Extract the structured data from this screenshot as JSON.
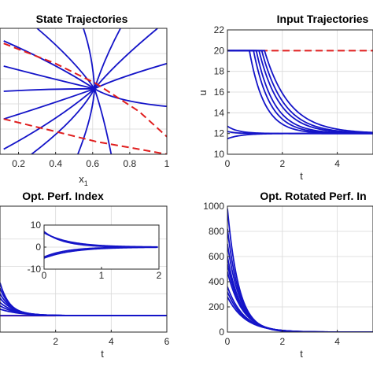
{
  "colors": {
    "trajectory": "#1414c8",
    "reference": "#e01e1e",
    "axis": "#262626",
    "grid": "#d9d9d9"
  },
  "chart_data": [
    {
      "id": "state",
      "type": "line",
      "title": "State Trajectories",
      "xlabel": "x",
      "xlabel_sub": "1",
      "ylabel": "",
      "xlim": [
        0.1,
        1.0
      ],
      "ylim": [
        0,
        1
      ],
      "xticks": [
        0.2,
        0.4,
        0.6,
        0.8,
        1.0
      ],
      "xtick_labels": [
        "0.2",
        "0.4",
        "0.6",
        "0.8",
        "1"
      ],
      "yticks": [],
      "grid": true,
      "convergence_point": [
        0.61,
        0.52
      ],
      "series": [
        {
          "kind": "trajectory",
          "x": [
            0.12,
            0.4,
            0.61
          ],
          "y": [
            0.9,
            0.72,
            0.52
          ]
        },
        {
          "kind": "trajectory",
          "x": [
            0.12,
            0.38,
            0.61
          ],
          "y": [
            0.7,
            0.6,
            0.52
          ]
        },
        {
          "kind": "trajectory",
          "x": [
            0.12,
            0.36,
            0.61
          ],
          "y": [
            0.5,
            0.52,
            0.52
          ]
        },
        {
          "kind": "trajectory",
          "x": [
            0.12,
            0.38,
            0.61
          ],
          "y": [
            0.28,
            0.4,
            0.52
          ]
        },
        {
          "kind": "trajectory",
          "x": [
            0.12,
            0.42,
            0.61
          ],
          "y": [
            0.04,
            0.28,
            0.52
          ]
        },
        {
          "kind": "trajectory",
          "x": [
            0.27,
            0.52,
            0.61
          ],
          "y": [
            0.0,
            0.28,
            0.52
          ]
        },
        {
          "kind": "trajectory",
          "x": [
            0.52,
            0.6,
            0.61
          ],
          "y": [
            0.0,
            0.3,
            0.52
          ]
        },
        {
          "kind": "trajectory",
          "x": [
            0.7,
            0.66,
            0.61
          ],
          "y": [
            0.0,
            0.3,
            0.52
          ]
        },
        {
          "kind": "trajectory",
          "x": [
            1.0,
            0.72,
            0.61
          ],
          "y": [
            0.38,
            0.42,
            0.52
          ]
        },
        {
          "kind": "trajectory",
          "x": [
            1.0,
            0.72,
            0.61
          ],
          "y": [
            0.72,
            0.6,
            0.52
          ]
        },
        {
          "kind": "trajectory",
          "x": [
            0.95,
            0.72,
            0.61
          ],
          "y": [
            1.0,
            0.72,
            0.52
          ]
        },
        {
          "kind": "trajectory",
          "x": [
            0.75,
            0.66,
            0.61
          ],
          "y": [
            1.0,
            0.75,
            0.52
          ]
        },
        {
          "kind": "trajectory",
          "x": [
            0.55,
            0.6,
            0.61
          ],
          "y": [
            1.0,
            0.78,
            0.52
          ]
        },
        {
          "kind": "trajectory",
          "x": [
            0.3,
            0.5,
            0.61
          ],
          "y": [
            1.0,
            0.75,
            0.52
          ]
        },
        {
          "kind": "reference",
          "x": [
            0.12,
            0.4,
            0.62,
            0.85,
            1.0
          ],
          "y": [
            0.88,
            0.72,
            0.56,
            0.34,
            0.14
          ]
        },
        {
          "kind": "reference",
          "x": [
            0.12,
            0.4,
            0.62,
            0.85,
            1.0
          ],
          "y": [
            0.28,
            0.18,
            0.1,
            0.04,
            0.0
          ]
        }
      ]
    },
    {
      "id": "input",
      "type": "line",
      "title": "Input Trajectories",
      "xlabel": "t",
      "ylabel": "u",
      "xlim": [
        0,
        5.3
      ],
      "ylim": [
        10,
        22
      ],
      "xticks": [
        0,
        2,
        4
      ],
      "xtick_labels": [
        "0",
        "2",
        "4"
      ],
      "yticks": [
        10,
        12,
        14,
        16,
        18,
        20,
        22
      ],
      "ytick_labels": [
        "10",
        "12",
        "14",
        "16",
        "18",
        "20",
        "22"
      ],
      "grid": true,
      "reference_level": 20,
      "saturated_curves": [
        {
          "switch_t": 0.8,
          "tau": 0.55
        },
        {
          "switch_t": 0.95,
          "tau": 0.6
        },
        {
          "switch_t": 1.05,
          "tau": 0.65
        },
        {
          "switch_t": 1.15,
          "tau": 0.75
        },
        {
          "switch_t": 1.25,
          "tau": 0.8
        },
        {
          "switch_t": 1.35,
          "tau": 0.9
        }
      ],
      "converge_curves": [
        {
          "start": 12.7,
          "tau": 0.4
        },
        {
          "start": 11.5,
          "tau": 0.5
        },
        {
          "start": 12.2,
          "tau": 0.3
        }
      ],
      "steady_value": 12
    },
    {
      "id": "perf",
      "type": "line",
      "title": "Opt. Perf. Index",
      "xlabel": "t",
      "ylabel": "",
      "xlim": [
        0,
        6
      ],
      "ylim": [
        0,
        1
      ],
      "xticks": [
        2,
        4,
        6
      ],
      "xtick_labels": [
        "2",
        "4",
        "6"
      ],
      "grid": true,
      "main_curves": [
        {
          "start": 0.3,
          "tau": 0.35
        },
        {
          "start": 0.25,
          "tau": 0.4
        },
        {
          "start": 0.2,
          "tau": 0.45
        },
        {
          "start": 0.16,
          "tau": 0.5
        },
        {
          "start": 0.12,
          "tau": 0.55
        },
        {
          "start": 0.09,
          "tau": 0.6
        },
        {
          "start": 0.06,
          "tau": 0.7
        }
      ],
      "red_segment": [
        0,
        2
      ],
      "inset": {
        "xlim": [
          0,
          2
        ],
        "ylim": [
          -10,
          10
        ],
        "xticks": [
          0,
          1,
          2
        ],
        "xtick_labels": [
          "0",
          "1",
          "2"
        ],
        "yticks": [
          -10,
          0,
          10
        ],
        "ytick_labels": [
          "-10",
          "0",
          "10"
        ],
        "curves": [
          {
            "start": 7,
            "tau": 0.35
          },
          {
            "start": 6.5,
            "tau": 0.45
          },
          {
            "start": -4.5,
            "tau": 0.4
          },
          {
            "start": -5,
            "tau": 0.5
          }
        ]
      }
    },
    {
      "id": "rotated",
      "type": "line",
      "title": "Opt. Rotated Perf. In",
      "xlabel": "t",
      "ylabel": "",
      "xlim": [
        0,
        5.3
      ],
      "ylim": [
        0,
        1000
      ],
      "xticks": [
        0,
        2,
        4
      ],
      "xtick_labels": [
        "0",
        "2",
        "4"
      ],
      "yticks": [
        0,
        200,
        400,
        600,
        800,
        1000
      ],
      "ytick_labels": [
        "0",
        "200",
        "400",
        "600",
        "800",
        "1000"
      ],
      "grid": true,
      "curves": [
        {
          "start": 980,
          "tau": 0.42
        },
        {
          "start": 820,
          "tau": 0.45
        },
        {
          "start": 700,
          "tau": 0.48
        },
        {
          "start": 600,
          "tau": 0.5
        },
        {
          "start": 540,
          "tau": 0.52
        },
        {
          "start": 480,
          "tau": 0.55
        },
        {
          "start": 360,
          "tau": 0.6
        },
        {
          "start": 320,
          "tau": 0.62
        },
        {
          "start": 280,
          "tau": 0.65
        }
      ]
    }
  ]
}
